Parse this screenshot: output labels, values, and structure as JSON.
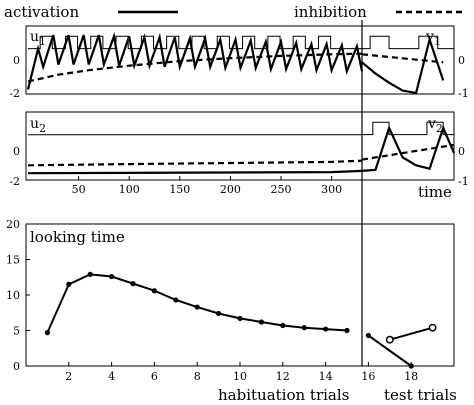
{
  "chart_data": [
    {
      "type": "line",
      "panel_label_left": "u",
      "panel_label_left_sub": "1",
      "panel_label_right": "v",
      "panel_label_right_sub": "1",
      "xlim": [
        0,
        330
      ],
      "ylim": [
        -2,
        1
      ],
      "yticks_left": [
        "0",
        "-2"
      ],
      "yticks_right": [
        "0",
        "-1"
      ],
      "series": [
        {
          "name": "activation",
          "style": "solid-thick",
          "x": [
            0,
            10,
            15,
            25,
            30,
            40,
            45,
            55,
            60,
            70,
            75,
            85,
            90,
            100,
            105,
            115,
            120,
            130,
            135,
            145,
            150,
            160,
            165,
            175,
            180,
            190,
            195,
            205,
            210,
            220,
            225,
            235,
            240,
            250,
            255,
            265,
            270,
            280,
            285,
            295,
            300,
            310,
            315,
            325,
            330
          ],
          "values": [
            -1.8,
            0.0,
            -0.8,
            0.6,
            -0.7,
            0.6,
            -0.7,
            0.6,
            -0.7,
            0.6,
            -0.7,
            0.55,
            -0.75,
            0.55,
            -0.75,
            0.5,
            -0.75,
            0.5,
            -0.8,
            0.5,
            -0.8,
            0.45,
            -0.8,
            0.45,
            -0.8,
            0.4,
            -0.85,
            0.4,
            -0.85,
            0.35,
            -0.85,
            0.3,
            -0.9,
            0.3,
            -0.9,
            0.25,
            -0.9,
            0.2,
            -0.95,
            0.2,
            -0.95,
            0.15,
            -1.0,
            0.1,
            -1.0
          ]
        },
        {
          "name": "inhibition",
          "style": "dashed-thick",
          "x": [
            0,
            30,
            60,
            100,
            150,
            200,
            250,
            300,
            330
          ],
          "values": [
            -1.45,
            -1.15,
            -0.95,
            -0.75,
            -0.55,
            -0.42,
            -0.32,
            -0.25,
            -0.22
          ]
        },
        {
          "name": "input",
          "style": "pulse-thin",
          "pulses": [
            [
              12,
              24
            ],
            [
              37,
              49
            ],
            [
              62,
              74
            ],
            [
              87,
              99
            ],
            [
              112,
              124
            ],
            [
              137,
              149
            ],
            [
              162,
              174
            ],
            [
              187,
              199
            ],
            [
              212,
              224
            ],
            [
              237,
              249
            ],
            [
              262,
              274
            ],
            [
              287,
              299
            ]
          ],
          "base": 0.0,
          "high": 0.55
        }
      ],
      "test_segment": {
        "activation_x": [
          0,
          5,
          10,
          15,
          20,
          25,
          30
        ],
        "activation_y": [
          -0.6,
          -1.1,
          -1.5,
          -1.85,
          -1.95,
          0.4,
          -1.4
        ],
        "inhibition_x": [
          0,
          30
        ],
        "inhibition_y": [
          -0.25,
          -0.6
        ],
        "pulses": [
          [
            3,
            10
          ],
          [
            21,
            28
          ]
        ]
      }
    },
    {
      "type": "line",
      "panel_label_left": "u",
      "panel_label_left_sub": "2",
      "panel_label_right": "v",
      "panel_label_right_sub": "2",
      "xlim": [
        0,
        330
      ],
      "ylim": [
        -2,
        1
      ],
      "xticks": [
        "50",
        "100",
        "150",
        "200",
        "250",
        "300"
      ],
      "xtick_values": [
        50,
        100,
        150,
        200,
        250,
        300
      ],
      "xlabel": "time",
      "yticks_left": [
        "0",
        "-2"
      ],
      "yticks_right": [
        "0",
        "-1"
      ],
      "series": [
        {
          "name": "activation",
          "style": "solid-thick",
          "x": [
            0,
            300,
            330
          ],
          "values": [
            -1.7,
            -1.65,
            -1.6
          ]
        },
        {
          "name": "inhibition",
          "style": "dashed-thick",
          "x": [
            0,
            100,
            200,
            300,
            330
          ],
          "values": [
            -1.35,
            -1.3,
            -1.25,
            -1.2,
            -1.15
          ]
        },
        {
          "name": "input",
          "style": "line-thin",
          "x": [
            0,
            330
          ],
          "values": [
            0.0,
            0.0
          ]
        }
      ],
      "test_segment": {
        "activation_x": [
          0,
          5,
          10,
          15,
          20,
          25,
          30,
          34
        ],
        "activation_y": [
          -1.6,
          -1.55,
          0.3,
          -1.0,
          -1.35,
          -1.5,
          0.3,
          -0.8
        ],
        "inhibition_x": [
          0,
          34
        ],
        "inhibition_y": [
          -1.1,
          -0.45
        ],
        "pulses": [
          [
            4,
            10
          ],
          [
            24,
            30
          ]
        ]
      }
    },
    {
      "type": "line",
      "annotation": "looking time",
      "xlim": [
        0,
        20
      ],
      "ylim": [
        0,
        20
      ],
      "yticks": [
        "0",
        "5",
        "10",
        "15",
        "20"
      ],
      "ytick_values": [
        0,
        5,
        10,
        15,
        20
      ],
      "xticks": [
        "2",
        "4",
        "6",
        "8",
        "10",
        "12",
        "14",
        "16",
        "18"
      ],
      "xtick_values": [
        2,
        4,
        6,
        8,
        10,
        12,
        14,
        16,
        18
      ],
      "habituation_label": "habituation trials",
      "test_label": "test trials",
      "series": [
        {
          "name": "habituation",
          "x": [
            1,
            2,
            3,
            4,
            5,
            6,
            7,
            8,
            9,
            10,
            11,
            12,
            13,
            14,
            15
          ],
          "values": [
            4.7,
            11.5,
            12.9,
            12.6,
            11.6,
            10.6,
            9.3,
            8.3,
            7.4,
            6.7,
            6.2,
            5.7,
            5.4,
            5.2,
            5.0
          ]
        },
        {
          "name": "test-filled",
          "x": [
            16,
            18
          ],
          "values": [
            4.3,
            0.0
          ]
        },
        {
          "name": "test-open",
          "x": [
            17,
            19
          ],
          "values": [
            3.7,
            5.4
          ]
        }
      ]
    }
  ],
  "legend": {
    "activation": "activation",
    "inhibition": "inhibition"
  }
}
